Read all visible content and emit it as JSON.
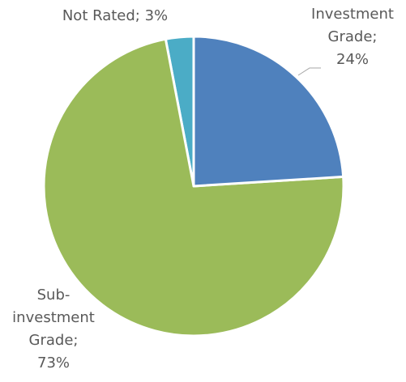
{
  "chart_data": {
    "type": "pie",
    "values": [
      24,
      73,
      3
    ],
    "value_labels": [
      "Investment Grade; 24%",
      "Sub-investment Grade; 73%",
      "Not Rated; 3%"
    ],
    "colors": [
      "#4f81bd",
      "#9bbb59",
      "#4bacc6"
    ]
  }
}
